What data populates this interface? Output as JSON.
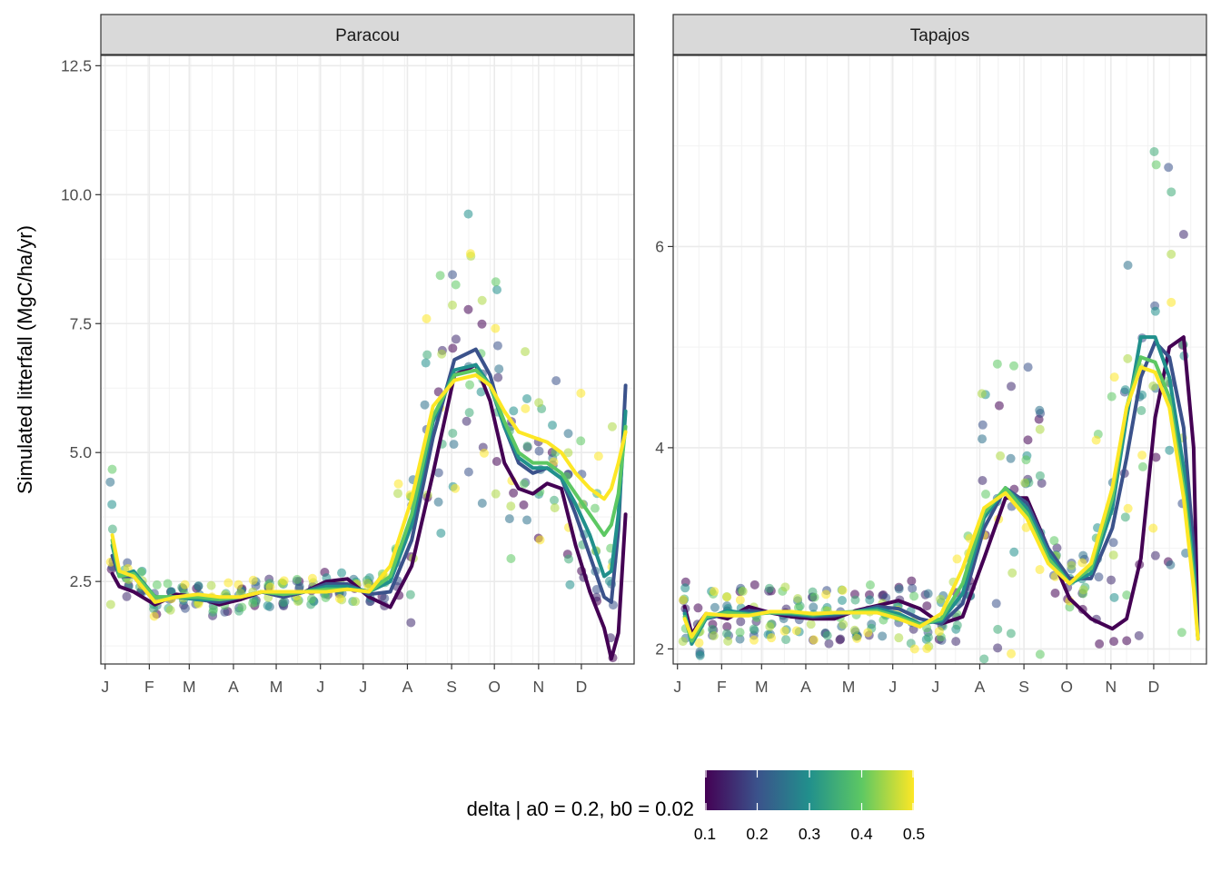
{
  "chart_data": {
    "type": "scatter",
    "ylabel": "Simulated litterfall (MgC/ha/yr)",
    "xlabel": "",
    "month_labels": [
      "J",
      "F",
      "M",
      "A",
      "M",
      "J",
      "J",
      "A",
      "S",
      "O",
      "N",
      "D"
    ],
    "legend": {
      "title": "delta | a0 = 0.2, b0 = 0.02",
      "type": "colorbar",
      "placement": "bottom",
      "limits": [
        0.1,
        0.5
      ],
      "ticks": [
        "0.1",
        "0.2",
        "0.3",
        "0.4",
        "0.5"
      ],
      "palette": [
        "#440154",
        "#3b528b",
        "#21908c",
        "#5dc863",
        "#fde725"
      ]
    },
    "panels": [
      {
        "title": "Paracou",
        "ylim": [
          0.9,
          12.7
        ],
        "yticks": [
          2.5,
          5.0,
          7.5,
          10.0,
          12.5
        ],
        "yticklabels": [
          "2.5",
          "5.0",
          "7.5",
          "10.0",
          "12.5"
        ],
        "lines": [
          {
            "delta": 0.1,
            "x": [
              5,
              10,
              20,
              35,
              50,
              65,
              80,
              95,
              110,
              125,
              140,
              155,
              170,
              185,
              200,
              215,
              230,
              245,
              260,
              270,
              280,
              290,
              300,
              310,
              320,
              330,
              340,
              350,
              355,
              360,
              365
            ],
            "y": [
              2.65,
              2.4,
              2.3,
              2.05,
              2.25,
              2.2,
              2.05,
              2.15,
              2.3,
              2.2,
              2.3,
              2.5,
              2.55,
              2.2,
              2.0,
              2.8,
              4.6,
              6.5,
              6.7,
              6.0,
              4.8,
              4.3,
              4.2,
              4.4,
              4.3,
              3.2,
              2.3,
              1.6,
              1.0,
              1.5,
              3.8
            ]
          },
          {
            "delta": 0.2,
            "x": [
              5,
              10,
              20,
              35,
              50,
              65,
              80,
              95,
              110,
              125,
              140,
              155,
              170,
              185,
              200,
              215,
              230,
              245,
              260,
              270,
              280,
              290,
              300,
              310,
              320,
              330,
              340,
              350,
              355,
              360,
              365
            ],
            "y": [
              3.0,
              2.6,
              2.6,
              2.1,
              2.2,
              2.15,
              2.1,
              2.2,
              2.3,
              2.2,
              2.3,
              2.45,
              2.45,
              2.25,
              2.3,
              3.3,
              5.3,
              6.8,
              7.0,
              6.5,
              5.5,
              4.8,
              4.6,
              4.7,
              4.5,
              3.8,
              3.0,
              2.2,
              2.1,
              3.5,
              6.3
            ]
          },
          {
            "delta": 0.3,
            "x": [
              5,
              10,
              20,
              35,
              50,
              65,
              80,
              95,
              110,
              125,
              140,
              155,
              170,
              185,
              200,
              215,
              230,
              245,
              260,
              270,
              280,
              290,
              300,
              310,
              320,
              330,
              340,
              350,
              355,
              360,
              365
            ],
            "y": [
              3.2,
              2.6,
              2.7,
              2.2,
              2.2,
              2.15,
              2.15,
              2.2,
              2.3,
              2.25,
              2.3,
              2.4,
              2.4,
              2.3,
              2.5,
              3.6,
              5.6,
              6.6,
              6.7,
              6.3,
              5.5,
              4.9,
              4.7,
              4.7,
              4.5,
              4.0,
              3.4,
              2.6,
              2.7,
              3.8,
              5.8
            ]
          },
          {
            "delta": 0.4,
            "x": [
              5,
              10,
              20,
              35,
              50,
              65,
              80,
              95,
              110,
              125,
              140,
              155,
              170,
              185,
              200,
              215,
              230,
              245,
              260,
              270,
              280,
              290,
              300,
              310,
              320,
              330,
              340,
              350,
              355,
              360,
              365
            ],
            "y": [
              3.3,
              2.6,
              2.65,
              2.2,
              2.2,
              2.2,
              2.15,
              2.2,
              2.3,
              2.25,
              2.3,
              2.35,
              2.35,
              2.3,
              2.6,
              3.8,
              5.7,
              6.5,
              6.6,
              6.3,
              5.6,
              5.0,
              4.8,
              4.8,
              4.6,
              4.2,
              3.8,
              3.4,
              3.6,
              4.2,
              5.5
            ]
          },
          {
            "delta": 0.5,
            "x": [
              5,
              10,
              20,
              35,
              50,
              65,
              80,
              95,
              110,
              125,
              140,
              155,
              170,
              185,
              200,
              215,
              230,
              245,
              260,
              270,
              280,
              290,
              300,
              310,
              320,
              330,
              340,
              350,
              355,
              360,
              365
            ],
            "y": [
              3.4,
              2.7,
              2.6,
              2.1,
              2.2,
              2.25,
              2.2,
              2.2,
              2.3,
              2.3,
              2.3,
              2.3,
              2.35,
              2.3,
              2.8,
              4.1,
              5.9,
              6.4,
              6.5,
              6.3,
              5.8,
              5.4,
              5.3,
              5.2,
              5.0,
              4.6,
              4.3,
              4.1,
              4.3,
              4.8,
              5.4
            ]
          }
        ]
      },
      {
        "title": "Tapajos",
        "ylim": [
          1.85,
          7.9
        ],
        "yticks": [
          2,
          4,
          6
        ],
        "yticklabels": [
          "2",
          "4",
          "6"
        ],
        "lines": [
          {
            "delta": 0.1,
            "x": [
              5,
              10,
              20,
              35,
              50,
              65,
              80,
              95,
              110,
              125,
              140,
              155,
              170,
              185,
              200,
              215,
              230,
              245,
              260,
              275,
              290,
              305,
              315,
              325,
              335,
              345,
              355,
              362,
              365
            ],
            "y": [
              2.42,
              2.15,
              2.35,
              2.3,
              2.42,
              2.36,
              2.32,
              2.3,
              2.3,
              2.38,
              2.43,
              2.48,
              2.4,
              2.25,
              2.32,
              2.9,
              3.5,
              3.5,
              3.0,
              2.5,
              2.3,
              2.2,
              2.3,
              2.9,
              4.3,
              5.0,
              5.1,
              4.0,
              2.1
            ]
          },
          {
            "delta": 0.2,
            "x": [
              5,
              10,
              20,
              35,
              50,
              65,
              80,
              95,
              110,
              125,
              140,
              155,
              170,
              185,
              200,
              215,
              230,
              245,
              260,
              275,
              290,
              305,
              315,
              325,
              335,
              345,
              355,
              362,
              365
            ],
            "y": [
              2.38,
              2.08,
              2.3,
              2.35,
              2.38,
              2.36,
              2.34,
              2.32,
              2.33,
              2.37,
              2.42,
              2.4,
              2.3,
              2.25,
              2.45,
              3.2,
              3.6,
              3.45,
              3.0,
              2.7,
              2.7,
              3.2,
              3.9,
              4.7,
              5.05,
              4.9,
              4.2,
              3.0,
              2.1
            ]
          },
          {
            "delta": 0.3,
            "x": [
              5,
              10,
              20,
              35,
              50,
              65,
              80,
              95,
              110,
              125,
              140,
              155,
              170,
              185,
              200,
              215,
              230,
              245,
              260,
              275,
              290,
              305,
              315,
              325,
              335,
              345,
              355,
              362,
              365
            ],
            "y": [
              2.35,
              2.05,
              2.3,
              2.38,
              2.35,
              2.36,
              2.35,
              2.33,
              2.35,
              2.37,
              2.4,
              2.35,
              2.25,
              2.28,
              2.55,
              3.3,
              3.6,
              3.4,
              2.95,
              2.65,
              2.75,
              3.4,
              4.3,
              5.1,
              5.1,
              4.7,
              3.8,
              2.8,
              2.1
            ]
          },
          {
            "delta": 0.4,
            "x": [
              5,
              10,
              20,
              35,
              50,
              65,
              80,
              95,
              110,
              125,
              140,
              155,
              170,
              185,
              200,
              215,
              230,
              245,
              260,
              275,
              290,
              305,
              315,
              325,
              335,
              345,
              355,
              362,
              365
            ],
            "y": [
              2.32,
              2.08,
              2.32,
              2.36,
              2.34,
              2.36,
              2.36,
              2.34,
              2.36,
              2.37,
              2.38,
              2.32,
              2.24,
              2.3,
              2.65,
              3.35,
              3.6,
              3.35,
              2.9,
              2.65,
              2.8,
              3.5,
              4.4,
              4.9,
              4.85,
              4.5,
              3.6,
              2.7,
              2.1
            ]
          },
          {
            "delta": 0.5,
            "x": [
              5,
              10,
              20,
              35,
              50,
              65,
              80,
              95,
              110,
              125,
              140,
              155,
              170,
              185,
              200,
              215,
              230,
              245,
              260,
              275,
              290,
              305,
              315,
              325,
              335,
              345,
              355,
              362,
              365
            ],
            "y": [
              2.3,
              2.12,
              2.35,
              2.33,
              2.33,
              2.37,
              2.37,
              2.35,
              2.36,
              2.36,
              2.36,
              2.3,
              2.22,
              2.35,
              2.8,
              3.4,
              3.55,
              3.3,
              2.85,
              2.65,
              2.85,
              3.6,
              4.4,
              4.8,
              4.75,
              4.4,
              3.5,
              2.6,
              2.1
            ]
          }
        ]
      }
    ]
  }
}
